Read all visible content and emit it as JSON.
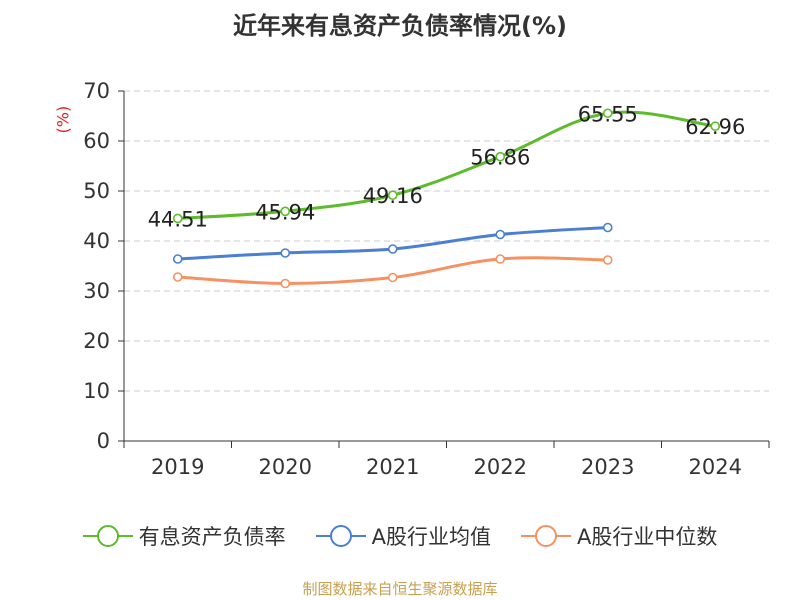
{
  "chart_data": {
    "type": "line",
    "title": "近年来有息资产负债率情况(%)",
    "ylabel": "(%)",
    "xlabel": "",
    "categories": [
      "2019",
      "2020",
      "2021",
      "2022",
      "2023",
      "2024"
    ],
    "ylim": [
      0,
      70
    ],
    "yticks": [
      0,
      10,
      20,
      30,
      40,
      50,
      60,
      70
    ],
    "grid": true,
    "legend_position": "bottom",
    "series": [
      {
        "name": "有息资产负债率",
        "color": "#5dbb2c",
        "values": [
          44.51,
          45.94,
          49.16,
          56.86,
          65.55,
          62.96
        ],
        "labels": [
          "44.51",
          "45.94",
          "49.16",
          "56.86",
          "65.55",
          "62.96"
        ]
      },
      {
        "name": "A股行业均值",
        "color": "#4a7fd4",
        "values": [
          36.4,
          37.6,
          38.4,
          41.3,
          42.7,
          null
        ],
        "labels": []
      },
      {
        "name": "A股行业中位数",
        "color": "#f59262",
        "values": [
          32.8,
          31.5,
          32.7,
          36.4,
          36.2,
          null
        ],
        "labels": []
      }
    ]
  },
  "source_text": "制图数据来自恒生聚源数据库"
}
